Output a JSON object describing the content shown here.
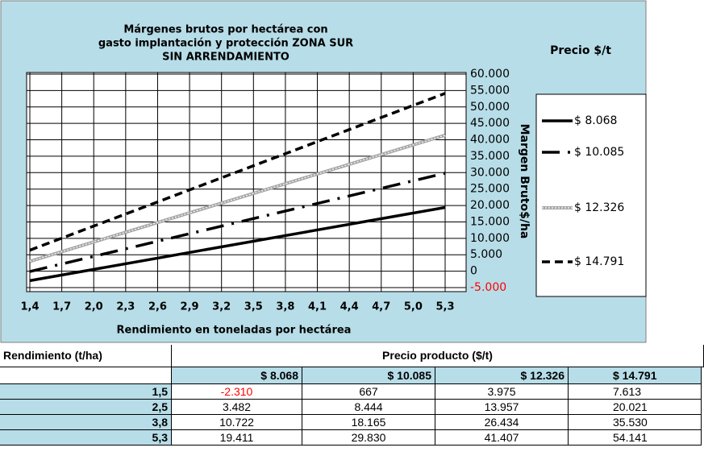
{
  "chart_data": {
    "type": "line",
    "title": [
      "Márgenes brutos por hectárea con",
      "gasto implantación y protección ZONA SUR",
      "SIN ARRENDAMIENTO"
    ],
    "legend_title": "Precio $/t",
    "x_label": "Rendimiento en toneladas por hectárea",
    "y_label": "Margen Bruto$/ha",
    "x": [
      1.4,
      5.3
    ],
    "series": [
      {
        "name": "$ 8.068",
        "color": "#000000",
        "style": "solid",
        "values": [
          -2882,
          19411
        ]
      },
      {
        "name": "$ 10.085",
        "color": "#000000",
        "style": "dash-dot",
        "values": [
          -100,
          29830
        ]
      },
      {
        "name": "$ 12.326",
        "color": "#a6a6a6",
        "style": "double",
        "values": [
          2990,
          41407
        ]
      },
      {
        "name": "$ 14.791",
        "color": "#000000",
        "style": "dash",
        "values": [
          6389,
          54141
        ]
      }
    ],
    "xlim": [
      1.4,
      5.3
    ],
    "xticks": [
      {
        "value": 1.4,
        "label": "1,4"
      },
      {
        "value": 1.7,
        "label": "1,7"
      },
      {
        "value": 2.0,
        "label": "2,0"
      },
      {
        "value": 2.3,
        "label": "2,3"
      },
      {
        "value": 2.6,
        "label": "2,6"
      },
      {
        "value": 2.9,
        "label": "2,9"
      },
      {
        "value": 3.2,
        "label": "3,2"
      },
      {
        "value": 3.5,
        "label": "3,5"
      },
      {
        "value": 3.8,
        "label": "3,8"
      },
      {
        "value": 4.1,
        "label": "4,1"
      },
      {
        "value": 4.4,
        "label": "4,4"
      },
      {
        "value": 4.7,
        "label": "4,7"
      },
      {
        "value": 5.0,
        "label": "5,0"
      },
      {
        "value": 5.3,
        "label": "5,3"
      }
    ],
    "ylim": [
      -5000,
      60000
    ],
    "yticks": [
      {
        "value": -5000,
        "label": "-5.000"
      },
      0,
      {
        "value": 5000,
        "label": "5.000"
      },
      {
        "value": 10000,
        "label": "10.000"
      },
      {
        "value": 15000,
        "label": "15.000"
      },
      {
        "value": 20000,
        "label": "20.000"
      },
      {
        "value": 25000,
        "label": "25.000"
      },
      {
        "value": 30000,
        "label": "30.000"
      },
      {
        "value": 35000,
        "label": "35.000"
      },
      {
        "value": 40000,
        "label": "40.000"
      },
      {
        "value": 45000,
        "label": "45.000"
      },
      {
        "value": 50000,
        "label": "50.000"
      },
      {
        "value": 55000,
        "label": "55.000"
      },
      {
        "value": 60000,
        "label": "60.000"
      }
    ],
    "grid": true
  },
  "table": {
    "headers": [
      "Rendimiento (t/ha)",
      "Precio producto ($/t)"
    ],
    "columns": [
      "$ 8.068",
      "$ 10.085",
      "$ 12.326",
      "$ 14.791"
    ],
    "rows": [
      [
        "1,5",
        "-2.310",
        "667",
        "3.975",
        "7.613"
      ],
      [
        "2,5",
        "3.482",
        "8.444",
        "13.957",
        "20.021"
      ],
      [
        "3,8",
        "10.722",
        "18.165",
        "26.434",
        "35.530"
      ],
      [
        "5,3",
        "19.411",
        "29.830",
        "41.407",
        "54.141"
      ]
    ]
  }
}
